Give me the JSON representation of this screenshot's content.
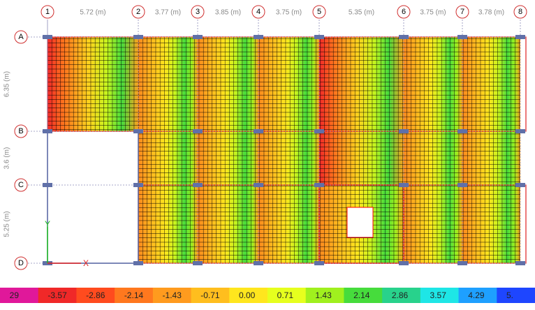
{
  "grid": {
    "columns": [
      "1",
      "2",
      "3",
      "4",
      "5",
      "6",
      "7",
      "8"
    ],
    "column_spacings": [
      "5.72 (m)",
      "3.77 (m)",
      "3.85 (m)",
      "3.75 (m)",
      "5.35 (m)",
      "3.75 (m)",
      "3.78 (m)"
    ],
    "rows": [
      "A",
      "B",
      "C",
      "D"
    ],
    "row_spacings": [
      "6.35 (m)",
      "3.6 (m)",
      "5.25 (m)"
    ],
    "axis_x": "X",
    "axis_y": "Y"
  },
  "legend": {
    "items": [
      {
        "label": "29",
        "color": "#e0189a"
      },
      {
        "label": "-3.57",
        "color": "#f02828"
      },
      {
        "label": "-2.86",
        "color": "#ff4b1e"
      },
      {
        "label": "-2.14",
        "color": "#ff781e"
      },
      {
        "label": "-1.43",
        "color": "#ff9b1e"
      },
      {
        "label": "-0.71",
        "color": "#ffbe1e"
      },
      {
        "label": "0.00",
        "color": "#ffe61e"
      },
      {
        "label": "0.71",
        "color": "#e6ff1e"
      },
      {
        "label": "1.43",
        "color": "#a0f01e"
      },
      {
        "label": "2.14",
        "color": "#46dc3c"
      },
      {
        "label": "2.86",
        "color": "#28d28c"
      },
      {
        "label": "3.57",
        "color": "#1ee6e6"
      },
      {
        "label": "4.29",
        "color": "#1ea0ff"
      },
      {
        "label": "5.",
        "color": "#1e46ff"
      }
    ]
  }
}
